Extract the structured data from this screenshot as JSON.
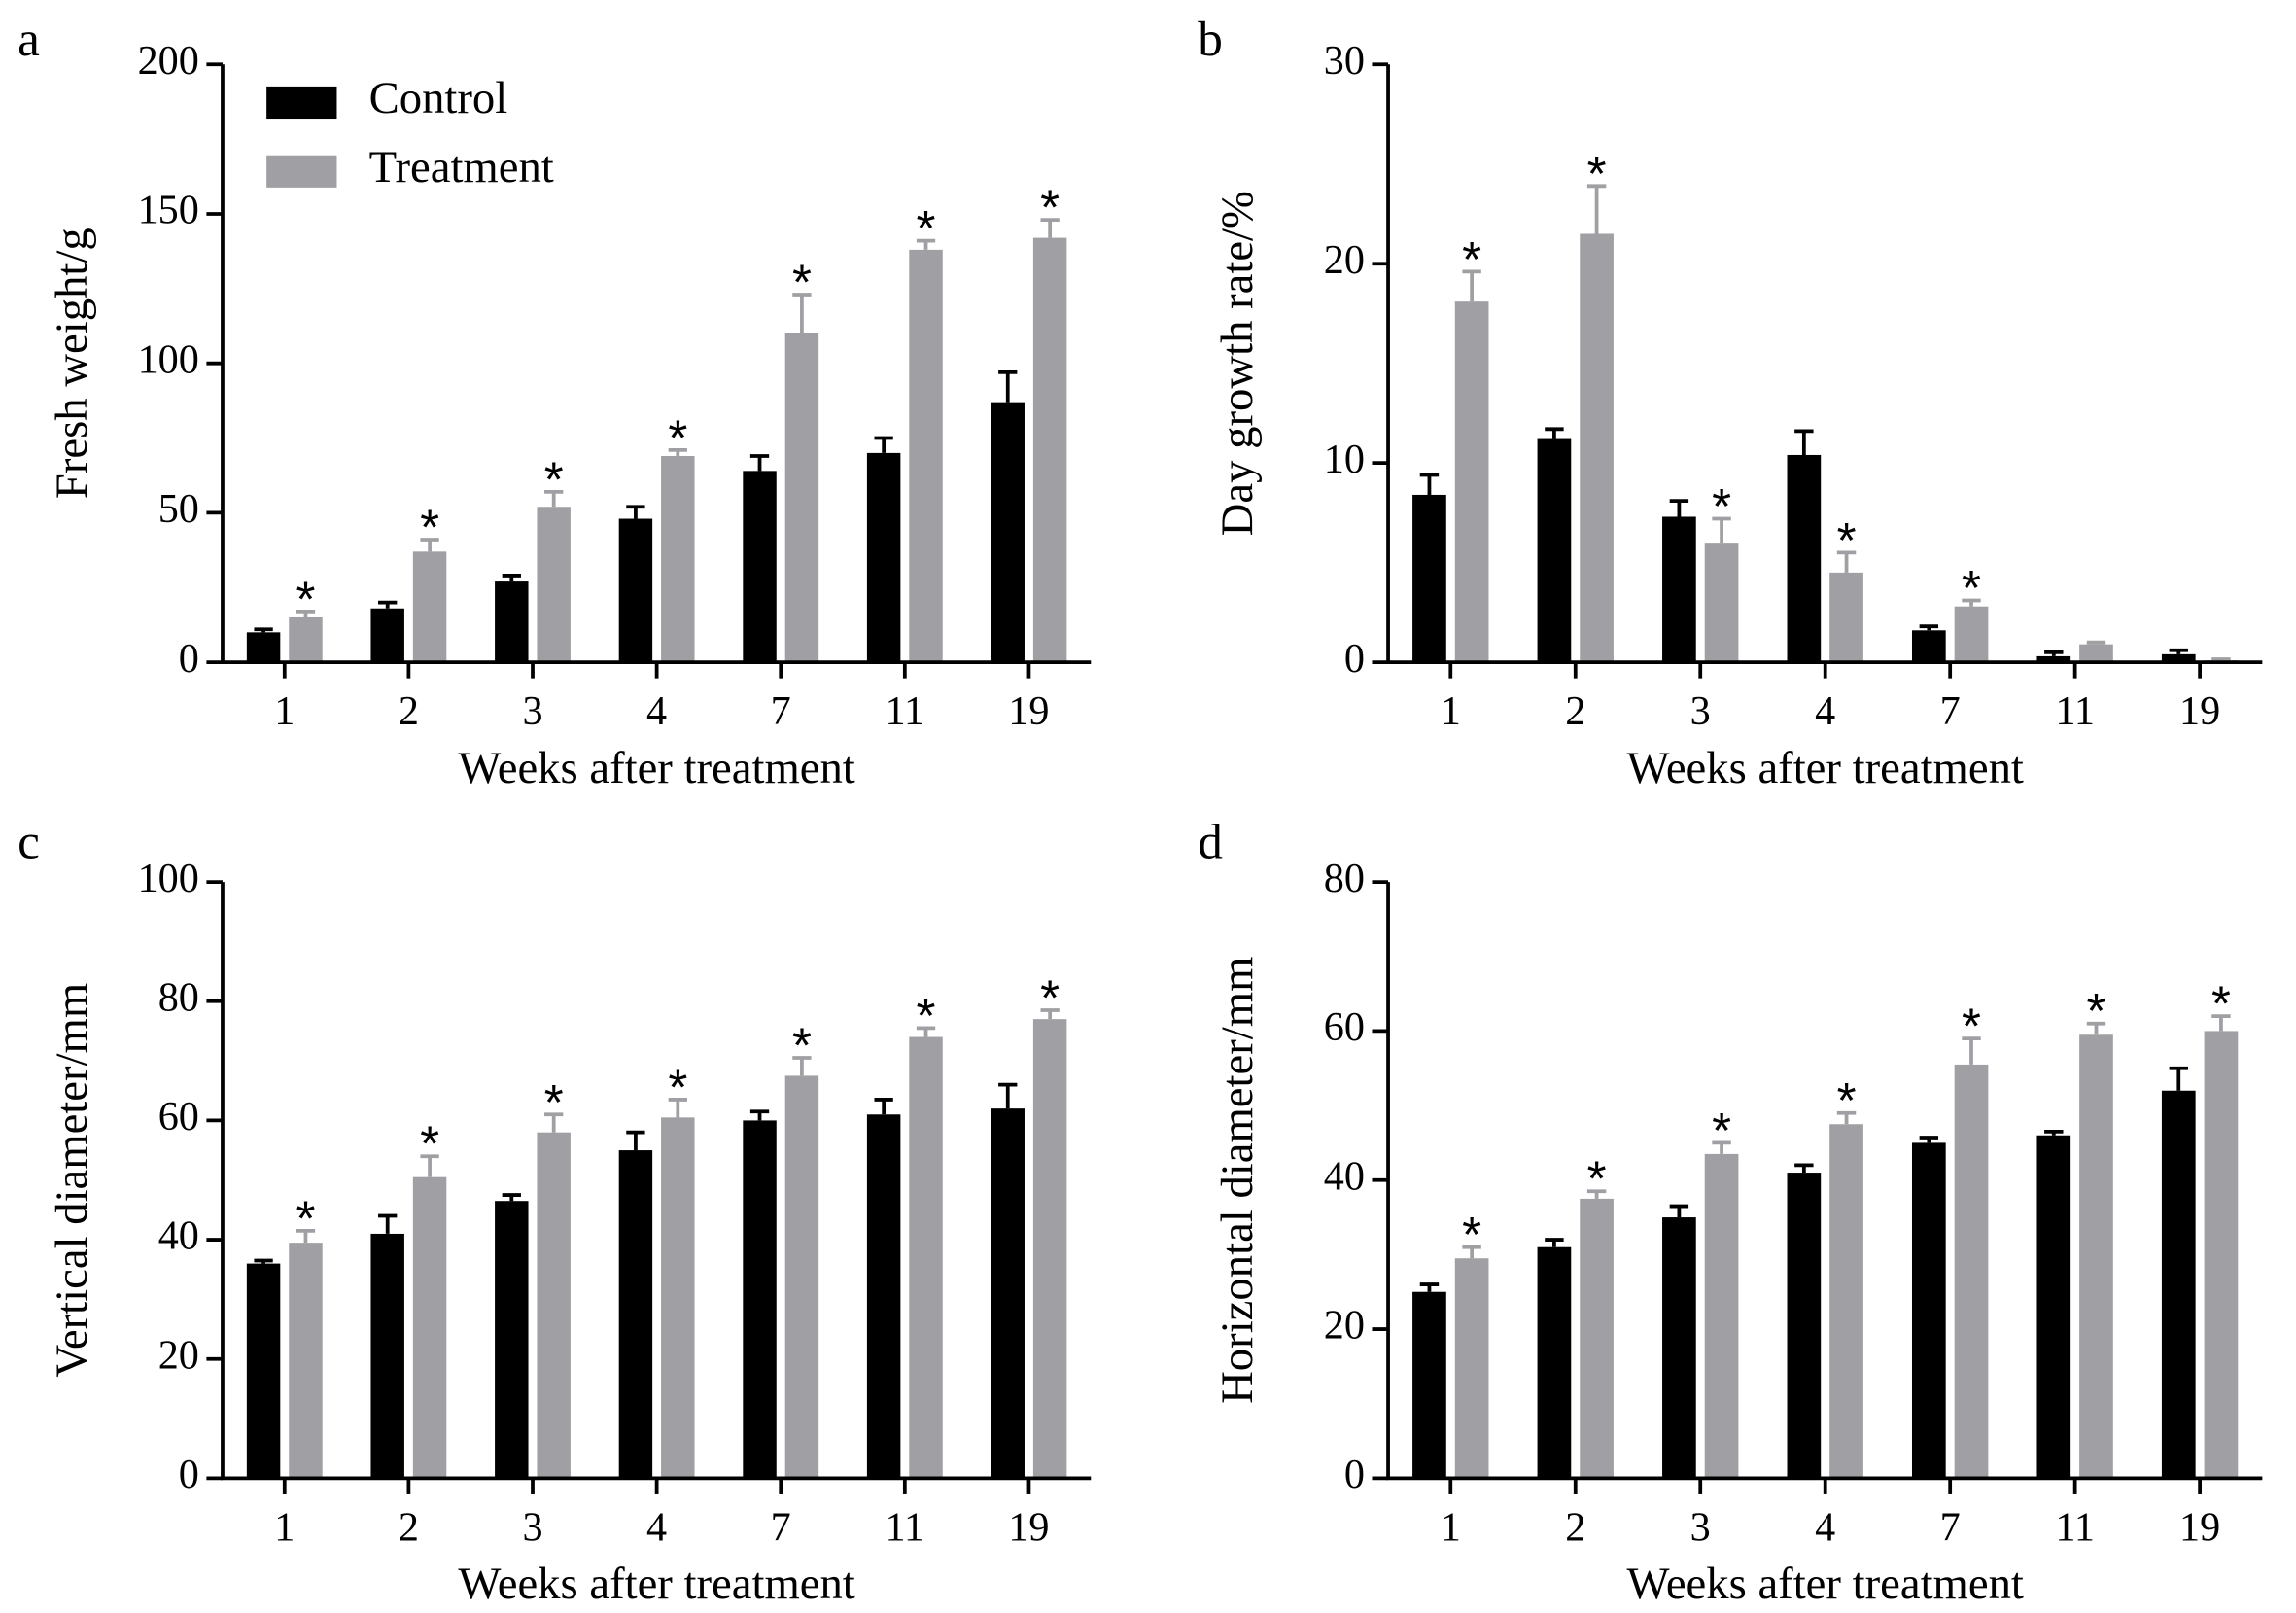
{
  "chart_data": [
    {
      "type": "bar",
      "panel": "a",
      "ylabel": "Fresh weight/g",
      "xlabel": "Weeks after treatment",
      "categories": [
        "1",
        "2",
        "3",
        "4",
        "7",
        "11",
        "19"
      ],
      "ylim": [
        0,
        200
      ],
      "yticks": [
        0,
        50,
        100,
        150,
        200
      ],
      "legend": "upper left",
      "series": [
        {
          "name": "Control",
          "color": "#000000",
          "values": [
            10,
            18,
            27,
            48,
            64,
            70,
            87
          ],
          "errors": [
            1,
            2,
            2,
            4,
            5,
            5,
            10
          ]
        },
        {
          "name": "Treatment",
          "color": "#a0a0a4",
          "values": [
            15,
            37,
            52,
            69,
            110,
            138,
            142
          ],
          "errors": [
            2,
            4,
            5,
            2,
            13,
            3,
            6
          ],
          "annotations": [
            "*",
            "*",
            "*",
            "*",
            "*",
            "*",
            "*"
          ]
        }
      ]
    },
    {
      "type": "bar",
      "panel": "b",
      "ylabel": "Day growth rate/%",
      "xlabel": "Weeks after treatment",
      "categories": [
        "1",
        "2",
        "3",
        "4",
        "7",
        "11",
        "19"
      ],
      "ylim": [
        0,
        30
      ],
      "yticks": [
        0,
        10,
        20,
        30
      ],
      "series": [
        {
          "color": "#000000",
          "values": [
            8.4,
            11.2,
            7.3,
            10.4,
            1.6,
            0.3,
            0.4
          ],
          "errors": [
            1,
            0.5,
            0.8,
            1.2,
            0.2,
            0.2,
            0.2
          ]
        },
        {
          "color": "#a0a0a4",
          "values": [
            18.1,
            21.5,
            6.0,
            4.5,
            2.8,
            0.9,
            0.1
          ],
          "errors": [
            1.5,
            2.4,
            1.2,
            1,
            0.3,
            0.1,
            0.05
          ],
          "annotations": [
            "*",
            "*",
            "*",
            "*",
            "*",
            null,
            null
          ]
        }
      ]
    },
    {
      "type": "bar",
      "panel": "c",
      "ylabel": "Vertical diameter/mm",
      "xlabel": "Weeks after treatment",
      "categories": [
        "1",
        "2",
        "3",
        "4",
        "7",
        "11",
        "19"
      ],
      "ylim": [
        0,
        100
      ],
      "yticks": [
        0,
        20,
        40,
        60,
        80,
        100
      ],
      "series": [
        {
          "color": "#000000",
          "values": [
            36,
            41,
            46.5,
            55,
            60,
            61,
            62
          ],
          "errors": [
            0.5,
            3,
            1,
            3,
            1.5,
            2.5,
            4
          ]
        },
        {
          "color": "#a0a0a4",
          "values": [
            39.5,
            50.5,
            58,
            60.5,
            67.5,
            74,
            77
          ],
          "errors": [
            2,
            3.5,
            3,
            3,
            3,
            1.5,
            1.5
          ],
          "annotations": [
            "*",
            "*",
            "*",
            "*",
            "*",
            "*",
            "*"
          ]
        }
      ]
    },
    {
      "type": "bar",
      "panel": "d",
      "ylabel": "Horizontal diameter/mm",
      "xlabel": "Weeks after treatment",
      "categories": [
        "1",
        "2",
        "3",
        "4",
        "7",
        "11",
        "19"
      ],
      "ylim": [
        0,
        80
      ],
      "yticks": [
        0,
        20,
        40,
        60,
        80
      ],
      "series": [
        {
          "color": "#000000",
          "values": [
            25,
            31,
            35,
            41,
            45,
            46,
            52
          ],
          "errors": [
            1,
            1,
            1.5,
            1,
            0.7,
            0.5,
            3
          ]
        },
        {
          "color": "#a0a0a4",
          "values": [
            29.5,
            37.5,
            43.5,
            47.5,
            55.5,
            59.5,
            60
          ],
          "errors": [
            1.5,
            1,
            1.5,
            1.5,
            3.5,
            1.5,
            2
          ],
          "annotations": [
            "*",
            "*",
            "*",
            "*",
            "*",
            "*",
            "*"
          ]
        }
      ]
    }
  ]
}
